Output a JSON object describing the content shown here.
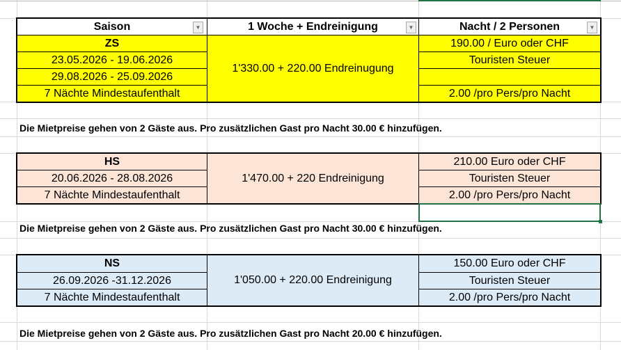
{
  "header": {
    "saison": "Saison",
    "woche": "1 Woche + Endreinigung",
    "nacht": "Nacht / 2 Personen",
    "filter_icon": "dropdown-arrow-icon"
  },
  "colors": {
    "zs": "#ffff00",
    "hs": "#fce4d6",
    "ns": "#ddebf7",
    "selection": "#217346"
  },
  "zs": {
    "name": "ZS",
    "dates1": "23.05.2026 - 19.06.2026",
    "dates2": "29.08.2026 - 25.09.2026",
    "min": "7 Nächte Mindestaufenthalt",
    "woche": "1'330.00 + 220.00 Endreinugung",
    "price": "190.00 / Euro oder CHF",
    "tax_label": "Touristen Steuer",
    "tax": "2.00  /pro Pers/pro Nacht"
  },
  "note1": "Die Mietpreise gehen von 2 Gäste aus. Pro zusätzlichen Gast pro Nacht 30.00 € hinzufügen.",
  "hs": {
    "name": "HS",
    "dates": "20.06.2026 - 28.08.2026",
    "min": "7 Nächte Mindestaufenthalt",
    "woche": "1'470.00 + 220 Endreinigung",
    "price": "210.00 Euro oder CHF",
    "tax_label": "Touristen Steuer",
    "tax": "2.00  /pro Pers/pro Nacht"
  },
  "note2": "Die Mietpreise gehen von 2 Gäste aus. Pro zusätzlichen Gast pro Nacht 30.00 € hinzufügen.",
  "ns": {
    "name": "NS",
    "dates": "26.09.2026 -31.12.2026",
    "min": "7 Nächte Mindestaufenthalt",
    "woche": "1'050.00 + 220.00 Endreinigung",
    "price": "150.00 Euro oder CHF",
    "tax_label": "Touristen Steuer",
    "tax": "2.00 /pro Pers/pro Nacht"
  },
  "note3": "Die Mietpreise gehen von 2 Gäste aus. Pro zusätzlichen Gast pro Nacht 20.00 € hinzufügen."
}
